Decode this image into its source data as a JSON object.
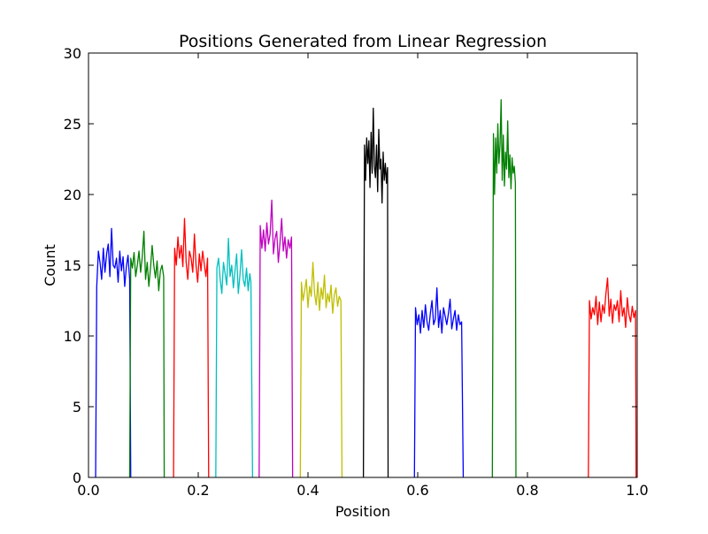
{
  "chart_data": {
    "type": "line",
    "title": "Positions Generated from Linear Regression",
    "xlabel": "Position",
    "ylabel": "Count",
    "xlim": [
      0.0,
      1.0
    ],
    "ylim": [
      0,
      30
    ],
    "xticks": [
      0.0,
      0.2,
      0.4,
      0.6,
      0.8,
      1.0
    ],
    "xtick_labels": [
      "0.0",
      "0.2",
      "0.4",
      "0.6",
      "0.8",
      "1.0"
    ],
    "yticks": [
      0,
      5,
      10,
      15,
      20,
      25,
      30
    ],
    "ytick_labels": [
      "0",
      "5",
      "10",
      "15",
      "20",
      "25",
      "30"
    ],
    "grid": false,
    "legend": "none",
    "series": [
      {
        "color": "#0000ff",
        "x": [
          0.013,
          0.015,
          0.018,
          0.021,
          0.024,
          0.027,
          0.03,
          0.033,
          0.036,
          0.039,
          0.042,
          0.045,
          0.048,
          0.051,
          0.054,
          0.057,
          0.06,
          0.063,
          0.066,
          0.069,
          0.072,
          0.075,
          0.077
        ],
        "y": [
          0,
          13.5,
          16.0,
          15.2,
          14.0,
          16.2,
          14.5,
          15.8,
          16.5,
          14.2,
          17.6,
          15.0,
          14.8,
          15.5,
          13.8,
          16.0,
          14.6,
          15.6,
          13.5,
          14.9,
          15.7,
          14.0,
          0
        ]
      },
      {
        "color": "#008000",
        "x": [
          0.075,
          0.077,
          0.08,
          0.083,
          0.086,
          0.089,
          0.092,
          0.095,
          0.098,
          0.101,
          0.104,
          0.107,
          0.11,
          0.113,
          0.116,
          0.119,
          0.122,
          0.125,
          0.128,
          0.131,
          0.134,
          0.137,
          0.138
        ],
        "y": [
          0,
          15.5,
          14.8,
          15.9,
          14.2,
          15.0,
          16.0,
          14.5,
          15.6,
          17.4,
          14.0,
          15.2,
          13.5,
          14.8,
          16.4,
          15.0,
          14.1,
          15.3,
          13.2,
          14.6,
          15.0,
          14.2,
          0
        ]
      },
      {
        "color": "#ff0000",
        "x": [
          0.155,
          0.157,
          0.16,
          0.163,
          0.166,
          0.169,
          0.172,
          0.175,
          0.178,
          0.181,
          0.184,
          0.187,
          0.19,
          0.193,
          0.196,
          0.199,
          0.202,
          0.205,
          0.208,
          0.211,
          0.214,
          0.217,
          0.219
        ],
        "y": [
          0,
          16.2,
          15.0,
          17.0,
          15.5,
          16.4,
          14.9,
          18.3,
          15.2,
          14.0,
          16.0,
          15.5,
          14.5,
          17.2,
          15.0,
          13.8,
          15.8,
          14.6,
          16.0,
          15.1,
          14.2,
          15.5,
          0
        ]
      },
      {
        "color": "#00bfbf",
        "x": [
          0.232,
          0.234,
          0.237,
          0.24,
          0.243,
          0.246,
          0.249,
          0.252,
          0.255,
          0.258,
          0.261,
          0.264,
          0.267,
          0.27,
          0.273,
          0.276,
          0.279,
          0.282,
          0.285,
          0.288,
          0.291,
          0.294,
          0.296,
          0.299
        ],
        "y": [
          0,
          14.8,
          15.5,
          14.0,
          13.0,
          15.2,
          14.4,
          13.6,
          16.9,
          14.2,
          15.0,
          13.4,
          14.6,
          15.8,
          13.0,
          14.3,
          16.1,
          14.0,
          13.5,
          14.8,
          13.2,
          14.4,
          13.8,
          0
        ]
      },
      {
        "color": "#bf00bf",
        "x": [
          0.311,
          0.313,
          0.316,
          0.319,
          0.322,
          0.325,
          0.328,
          0.331,
          0.334,
          0.337,
          0.34,
          0.343,
          0.346,
          0.349,
          0.352,
          0.355,
          0.358,
          0.361,
          0.364,
          0.367,
          0.37,
          0.372
        ],
        "y": [
          0,
          17.8,
          16.2,
          17.5,
          16.0,
          18.0,
          16.5,
          17.2,
          19.6,
          15.8,
          16.9,
          17.4,
          15.2,
          16.6,
          18.3,
          16.0,
          17.0,
          15.5,
          16.8,
          16.2,
          17.0,
          0
        ]
      },
      {
        "color": "#bfbf00",
        "x": [
          0.386,
          0.388,
          0.391,
          0.394,
          0.397,
          0.4,
          0.403,
          0.406,
          0.409,
          0.412,
          0.415,
          0.418,
          0.421,
          0.424,
          0.427,
          0.43,
          0.433,
          0.436,
          0.439,
          0.442,
          0.445,
          0.448,
          0.451,
          0.454,
          0.457,
          0.46,
          0.462
        ],
        "y": [
          0,
          13.8,
          12.5,
          13.2,
          14.0,
          12.0,
          13.5,
          12.8,
          15.2,
          13.0,
          12.2,
          13.8,
          11.8,
          13.4,
          12.6,
          14.3,
          12.0,
          13.0,
          12.4,
          13.6,
          11.6,
          12.9,
          13.4,
          12.1,
          12.8,
          12.5,
          0
        ]
      },
      {
        "color": "#000000",
        "x": [
          0.501,
          0.503,
          0.505,
          0.507,
          0.509,
          0.511,
          0.513,
          0.515,
          0.517,
          0.519,
          0.521,
          0.523,
          0.525,
          0.527,
          0.529,
          0.531,
          0.533,
          0.535,
          0.537,
          0.539,
          0.541,
          0.543,
          0.545,
          0.546
        ],
        "y": [
          0,
          23.5,
          21.0,
          24.0,
          22.2,
          23.8,
          20.5,
          24.4,
          21.5,
          26.1,
          22.0,
          21.2,
          23.5,
          20.2,
          24.6,
          21.8,
          22.5,
          19.4,
          23.0,
          21.0,
          22.2,
          20.8,
          21.9,
          0
        ]
      },
      {
        "color": "#0000ff",
        "x": [
          0.594,
          0.596,
          0.599,
          0.602,
          0.605,
          0.608,
          0.611,
          0.614,
          0.617,
          0.62,
          0.623,
          0.626,
          0.629,
          0.632,
          0.635,
          0.638,
          0.641,
          0.644,
          0.647,
          0.65,
          0.653,
          0.656,
          0.659,
          0.662,
          0.665,
          0.668,
          0.671,
          0.674,
          0.677,
          0.68,
          0.683
        ],
        "y": [
          0,
          12.0,
          10.8,
          11.5,
          10.2,
          11.8,
          10.6,
          12.2,
          11.0,
          10.4,
          11.6,
          12.5,
          10.8,
          11.2,
          13.4,
          10.6,
          11.8,
          10.2,
          12.0,
          11.4,
          10.8,
          11.6,
          12.6,
          10.5,
          11.2,
          11.8,
          10.4,
          11.5,
          10.8,
          11.0,
          0
        ]
      },
      {
        "color": "#008000",
        "x": [
          0.736,
          0.738,
          0.74,
          0.742,
          0.744,
          0.746,
          0.748,
          0.75,
          0.752,
          0.754,
          0.756,
          0.758,
          0.76,
          0.762,
          0.764,
          0.766,
          0.768,
          0.77,
          0.772,
          0.774,
          0.776,
          0.778,
          0.779
        ],
        "y": [
          0,
          24.3,
          20.0,
          24.0,
          21.5,
          25.0,
          22.2,
          23.5,
          26.7,
          21.0,
          24.2,
          20.6,
          23.0,
          21.8,
          25.2,
          21.2,
          22.8,
          20.4,
          22.6,
          21.5,
          22.0,
          20.8,
          0
        ]
      },
      {
        "color": "#ff0000",
        "x": [
          0.911,
          0.913,
          0.916,
          0.919,
          0.922,
          0.925,
          0.928,
          0.931,
          0.934,
          0.937,
          0.94,
          0.943,
          0.946,
          0.949,
          0.952,
          0.955,
          0.958,
          0.961,
          0.964,
          0.967,
          0.97,
          0.973,
          0.976,
          0.979,
          0.982,
          0.985,
          0.988,
          0.991,
          0.994,
          0.997,
          0.998
        ],
        "y": [
          0,
          12.5,
          11.2,
          12.0,
          11.5,
          12.8,
          10.8,
          12.4,
          11.0,
          12.2,
          11.6,
          13.0,
          14.1,
          11.4,
          12.6,
          10.9,
          12.2,
          11.8,
          12.5,
          11.0,
          13.2,
          11.4,
          12.0,
          10.6,
          12.7,
          11.5,
          11.0,
          12.1,
          11.3,
          11.8,
          0
        ]
      }
    ]
  }
}
